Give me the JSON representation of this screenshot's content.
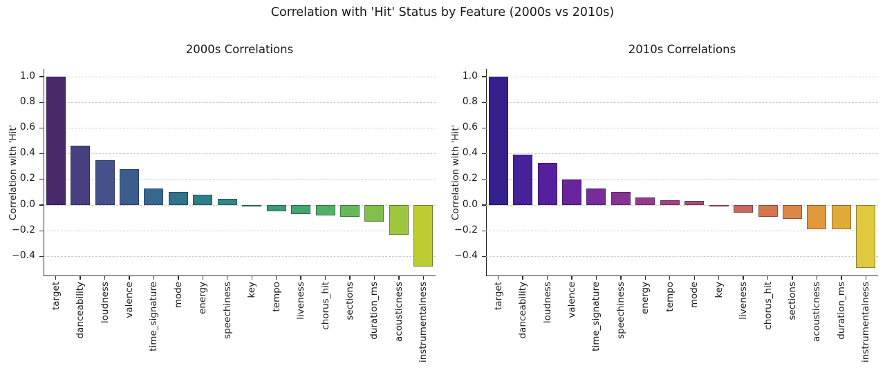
{
  "figure": {
    "suptitle": "Correlation with 'Hit' Status by Feature (2000s vs 2010s)",
    "background_color": "#ffffff",
    "text_color": "#1c1c1c",
    "grid_color": "#cbcbcb",
    "spine_color": "#2b2b2b"
  },
  "chart_data": [
    {
      "type": "bar",
      "title": "2000s Correlations",
      "ylabel": "Correlation with 'Hit'",
      "xlabel": "",
      "ylim": [
        -0.555,
        1.06
      ],
      "yticks": [
        1.0,
        0.8,
        0.6,
        0.4,
        0.2,
        0.0,
        -0.2,
        -0.4
      ],
      "grid": "dashed-horizontal",
      "legend": "none",
      "palette": "viridis",
      "categories": [
        "target",
        "danceability",
        "loudness",
        "valence",
        "time_signature",
        "mode",
        "energy",
        "speechiness",
        "key",
        "tempo",
        "liveness",
        "chorus_hit",
        "sections",
        "duration_ms",
        "acousticness",
        "instrumentalness"
      ],
      "values": [
        1.0,
        0.46,
        0.35,
        0.28,
        0.13,
        0.1,
        0.08,
        0.05,
        -0.01,
        -0.05,
        -0.07,
        -0.08,
        -0.09,
        -0.13,
        -0.23,
        -0.48
      ],
      "colors": [
        "#482a6c",
        "#46417e",
        "#44518b",
        "#3c5d8c",
        "#35688c",
        "#30738a",
        "#2d7e86",
        "#2e8982",
        "#319379",
        "#389d75",
        "#41a76f",
        "#50b065",
        "#65b958",
        "#80c04a",
        "#9ec73d",
        "#bccd31"
      ]
    },
    {
      "type": "bar",
      "title": "2010s Correlations",
      "ylabel": "Correlation with 'Hit'",
      "xlabel": "",
      "ylim": [
        -0.555,
        1.06
      ],
      "yticks": [
        1.0,
        0.8,
        0.6,
        0.4,
        0.2,
        0.0,
        -0.2,
        -0.4
      ],
      "grid": "dashed-horizontal",
      "legend": "none",
      "palette": "plasma",
      "categories": [
        "target",
        "danceability",
        "loudness",
        "valence",
        "time_signature",
        "speechiness",
        "energy",
        "tempo",
        "mode",
        "key",
        "liveness",
        "chorus_hit",
        "sections",
        "acousticness",
        "duration_ms",
        "instrumentalness"
      ],
      "values": [
        1.0,
        0.39,
        0.33,
        0.2,
        0.13,
        0.1,
        0.06,
        0.04,
        0.03,
        -0.01,
        -0.06,
        -0.09,
        -0.11,
        -0.19,
        -0.19,
        -0.49
      ],
      "colors": [
        "#33208e",
        "#45219a",
        "#561f9e",
        "#67249d",
        "#772c99",
        "#863492",
        "#943c89",
        "#a1447e",
        "#ad4e73",
        "#b95967",
        "#c8685c",
        "#d47650",
        "#dc8745",
        "#e2993a",
        "#e2ab38",
        "#e0c83f"
      ]
    }
  ]
}
